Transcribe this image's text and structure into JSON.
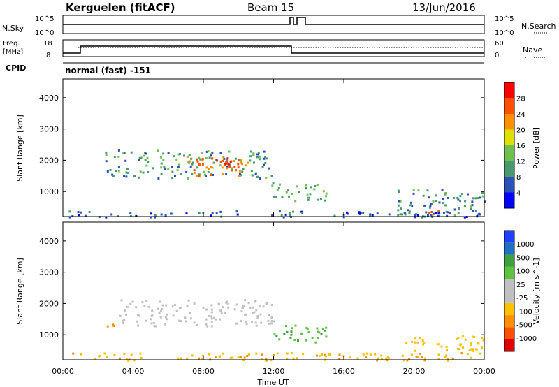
{
  "header": {
    "station": "Kerguelen (fitACF)",
    "beam": "Beam 15",
    "date": "13/Jun/2016"
  },
  "panels": {
    "nsky": {
      "left_label": "N.Sky",
      "right_label": "N.Search",
      "y_ticks": [
        "10^5",
        "10^0"
      ],
      "right_ticks": [
        "10^5",
        "10^0"
      ]
    },
    "freq": {
      "left_label_1": "Freq.",
      "left_label_2": "[MHz]",
      "y_ticks": [
        "18",
        "8"
      ],
      "right_label": "Nave",
      "right_ticks": [
        "60",
        "0"
      ]
    },
    "cpid": {
      "label": "CPID",
      "text": "normal (fast) -151"
    }
  },
  "colors": {
    "power_scale": [
      "#0000ff",
      "#2a52b8",
      "#4a9a70",
      "#70c050",
      "#e0e000",
      "#ff9000",
      "#ff5000",
      "#ff0000"
    ],
    "velocity_scale": [
      "#e00000",
      "#ff5000",
      "#ff9000",
      "#ffc000",
      "#c0c0c0",
      "#c0c0c0",
      "#60c040",
      "#40a040",
      "#2070c0",
      "#2040ff"
    ]
  },
  "chart_data": [
    {
      "type": "heatmap",
      "title": "Power",
      "ylabel": "Slant Range [km]",
      "xlabel": "",
      "y_ticks": [
        "1000",
        "2000",
        "3000",
        "4000"
      ],
      "ylim": [
        200,
        4600
      ],
      "colorbar_label": "Power [dB]",
      "colorbar_ticks": [
        "4",
        "8",
        "12",
        "16",
        "20",
        "24",
        "28"
      ],
      "colorbar_range": [
        0,
        32
      ],
      "regions": [
        {
          "t0": 2.4,
          "t1": 11.9,
          "r0": 1450,
          "r1": 2350,
          "value": 10
        },
        {
          "t0": 7.0,
          "t1": 10.6,
          "r0": 1500,
          "r1": 2150,
          "value": 24
        },
        {
          "t0": 8.2,
          "t1": 9.8,
          "r0": 1700,
          "r1": 2100,
          "value": 29
        },
        {
          "t0": 11.8,
          "t1": 15.0,
          "r0": 700,
          "r1": 1300,
          "value": 12
        },
        {
          "t0": 19.0,
          "t1": 24.0,
          "r0": 250,
          "r1": 1100,
          "value": 9
        },
        {
          "t0": 20.3,
          "t1": 21.4,
          "r0": 250,
          "r1": 450,
          "value": 25
        },
        {
          "t0": 0.0,
          "t1": 24.0,
          "r0": 200,
          "r1": 400,
          "value": 6
        }
      ]
    },
    {
      "type": "heatmap",
      "title": "Velocity",
      "ylabel": "Slant Range [km]",
      "xlabel": "Time UT",
      "x_ticks": [
        "00:00",
        "04:00",
        "08:00",
        "12:00",
        "16:00",
        "20:00",
        "00:00"
      ],
      "xlim": [
        0,
        24
      ],
      "y_ticks": [
        "1000",
        "2000",
        "3000",
        "4000"
      ],
      "ylim": [
        200,
        4600
      ],
      "colorbar_label": "Velocity [m s^-1]",
      "colorbar_ticks": [
        "1000",
        "500",
        "100",
        "25",
        "-25",
        "-100",
        "-500",
        "-1000"
      ],
      "regions": [
        {
          "t0": 3.2,
          "t1": 12.0,
          "r0": 1300,
          "r1": 2150,
          "value": 0
        },
        {
          "t0": 2.3,
          "t1": 3.0,
          "r0": 1300,
          "r1": 1550,
          "value": -300
        },
        {
          "t0": 12.0,
          "t1": 15.0,
          "r0": 750,
          "r1": 1350,
          "value": 80
        },
        {
          "t0": 19.5,
          "t1": 24.0,
          "r0": 500,
          "r1": 1000,
          "value": -60
        },
        {
          "t0": 0.0,
          "t1": 24.0,
          "r0": 200,
          "r1": 450,
          "value": -80
        }
      ]
    }
  ]
}
